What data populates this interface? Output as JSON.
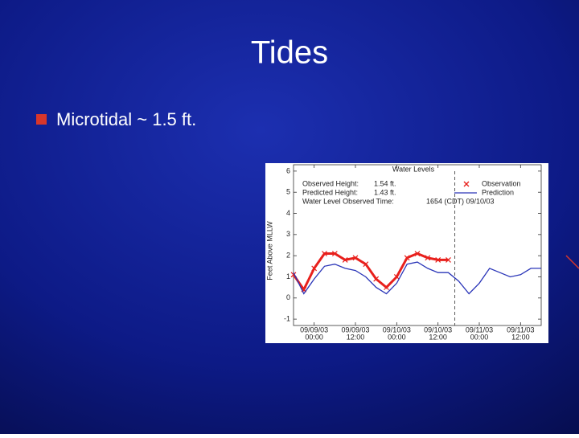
{
  "slide": {
    "title": "Tides",
    "bullets": [
      "Microtidal ~ 1.5 ft."
    ]
  },
  "chart_data": {
    "type": "line",
    "title": "Water Levels",
    "ylabel": "Feet Above MLLW",
    "info": [
      {
        "label": "Observed Height:",
        "value": "1.54 ft."
      },
      {
        "label": "Predicted Height:",
        "value": "1.43 ft."
      },
      {
        "label": "Water Level Observed Time:",
        "value": "1654 (CDT) 09/10/03"
      }
    ],
    "observed_time": "2003-09-10T16:54",
    "xlim": [
      "2003-09-08T18:00",
      "2003-09-11T18:00"
    ],
    "xticks": [
      {
        "value": "2003-09-09T00:00",
        "label": [
          "09/09/03",
          "00:00"
        ]
      },
      {
        "value": "2003-09-09T12:00",
        "label": [
          "09/09/03",
          "12:00"
        ]
      },
      {
        "value": "2003-09-10T00:00",
        "label": [
          "09/10/03",
          "00:00"
        ]
      },
      {
        "value": "2003-09-10T12:00",
        "label": [
          "09/10/03",
          "12:00"
        ]
      },
      {
        "value": "2003-09-11T00:00",
        "label": [
          "09/11/03",
          "00:00"
        ]
      },
      {
        "value": "2003-09-11T12:00",
        "label": [
          "09/11/03",
          "12:00"
        ]
      }
    ],
    "ylim": [
      -1.3,
      6.3
    ],
    "yticks": [
      -1,
      0,
      1,
      2,
      3,
      4,
      5,
      6
    ],
    "legend": "upper right",
    "series": [
      {
        "name": "Observation",
        "color": "#e8201c",
        "marker": "x",
        "x": [
          "2003-09-08T18:00",
          "2003-09-08T21:00",
          "2003-09-09T00:00",
          "2003-09-09T03:00",
          "2003-09-09T06:00",
          "2003-09-09T09:00",
          "2003-09-09T12:00",
          "2003-09-09T15:00",
          "2003-09-09T18:00",
          "2003-09-09T21:00",
          "2003-09-10T00:00",
          "2003-09-10T03:00",
          "2003-09-10T06:00",
          "2003-09-10T09:00",
          "2003-09-10T12:00",
          "2003-09-10T15:00"
        ],
        "values": [
          1.1,
          0.4,
          1.4,
          2.1,
          2.1,
          1.8,
          1.9,
          1.6,
          0.9,
          0.5,
          1.0,
          1.9,
          2.1,
          1.9,
          1.8,
          1.8
        ]
      },
      {
        "name": "Prediction",
        "color": "#2a35b8",
        "x": [
          "2003-09-08T18:00",
          "2003-09-08T21:00",
          "2003-09-09T00:00",
          "2003-09-09T03:00",
          "2003-09-09T06:00",
          "2003-09-09T09:00",
          "2003-09-09T12:00",
          "2003-09-09T15:00",
          "2003-09-09T18:00",
          "2003-09-09T21:00",
          "2003-09-10T00:00",
          "2003-09-10T03:00",
          "2003-09-10T06:00",
          "2003-09-10T09:00",
          "2003-09-10T12:00",
          "2003-09-10T15:00",
          "2003-09-10T18:00",
          "2003-09-10T21:00",
          "2003-09-11T00:00",
          "2003-09-11T03:00",
          "2003-09-11T06:00",
          "2003-09-11T09:00",
          "2003-09-11T12:00",
          "2003-09-11T15:00",
          "2003-09-11T18:00"
        ],
        "values": [
          1.2,
          0.2,
          0.9,
          1.5,
          1.6,
          1.4,
          1.3,
          1.0,
          0.5,
          0.2,
          0.7,
          1.6,
          1.7,
          1.4,
          1.2,
          1.2,
          0.8,
          0.2,
          0.7,
          1.4,
          1.2,
          1.0,
          1.1,
          1.4,
          1.4
        ]
      }
    ]
  }
}
